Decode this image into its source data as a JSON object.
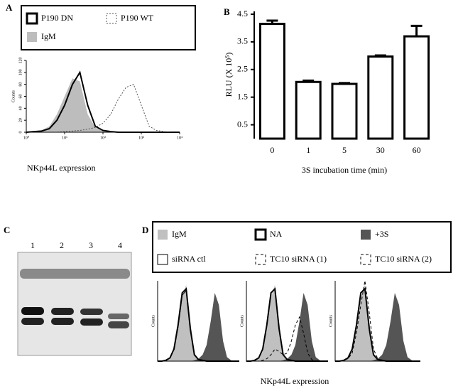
{
  "chart_data": [
    {
      "type": "density",
      "panel_label": "A",
      "xlabel": "NKp44L expression",
      "ylabel": "Counts",
      "xscale": "log",
      "xlim": [
        1,
        10000
      ],
      "ylim": [
        0,
        120
      ],
      "xticks": [
        {
          "value": 1,
          "label": "10⁰"
        },
        {
          "value": 10,
          "label": "10¹"
        },
        {
          "value": 100,
          "label": "10²"
        },
        {
          "value": 1000,
          "label": "10³"
        },
        {
          "value": 10000,
          "label": "10⁴"
        }
      ],
      "yticks": [
        0,
        20,
        40,
        60,
        80,
        100,
        120
      ],
      "x": [
        1,
        1.6,
        2.5,
        4,
        6.3,
        10,
        16,
        25,
        40,
        63,
        100,
        160,
        250,
        400,
        630,
        1000,
        1600,
        2500,
        4000,
        6300,
        10000
      ],
      "series": [
        {
          "name": "P190 DN",
          "color": "#000000",
          "style": "thick",
          "values": [
            0,
            1,
            2,
            6,
            20,
            45,
            80,
            100,
            45,
            10,
            3,
            1,
            0,
            0,
            0,
            0,
            0,
            0,
            0,
            0,
            0
          ]
        },
        {
          "name": "P190 WT",
          "color": "#555555",
          "style": "dotted",
          "values": [
            0,
            0,
            0,
            0,
            0,
            1,
            2,
            3,
            5,
            8,
            15,
            30,
            55,
            75,
            80,
            45,
            10,
            3,
            1,
            0,
            0
          ]
        },
        {
          "name": "IgM",
          "color": "#bdbdbd",
          "style": "fill",
          "values": [
            0,
            1,
            3,
            10,
            30,
            60,
            90,
            85,
            30,
            8,
            2,
            1,
            0,
            0,
            0,
            0,
            0,
            0,
            0,
            0,
            0
          ]
        }
      ]
    },
    {
      "type": "bar",
      "panel_label": "B",
      "xlabel": "3S incubation time (min)",
      "ylabel": "RLU (X 10⁵)",
      "categories": [
        "0",
        "1",
        "5",
        "30",
        "60"
      ],
      "values": [
        4.15,
        2.05,
        1.98,
        2.97,
        3.7
      ],
      "errors": [
        0.12,
        0.05,
        0.03,
        0.04,
        0.38
      ],
      "color": "#ffffff",
      "ylim": [
        0,
        4.5
      ],
      "yticks": [
        0.5,
        1.5,
        2.5,
        3.5,
        4.5
      ]
    },
    {
      "type": "density",
      "panel_label": "D",
      "ylabel": "Counts",
      "xscale": "log",
      "xlim": [
        1,
        10000
      ],
      "ylim": [
        0,
        100
      ],
      "x": [
        1,
        1.6,
        2.5,
        4,
        6.3,
        10,
        16,
        25,
        40,
        63,
        100,
        160,
        250,
        400,
        630,
        1000,
        1600,
        2500,
        4000,
        6300,
        10000
      ],
      "series": [
        {
          "name": "IgM",
          "color": "#c0c0c0",
          "style": "fill",
          "values": [
            0,
            0,
            1,
            3,
            12,
            40,
            80,
            95,
            50,
            10,
            2,
            0,
            0,
            0,
            0,
            0,
            0,
            0,
            0,
            0,
            0
          ]
        },
        {
          "name": "NA",
          "color": "#000000",
          "style": "thick",
          "values": [
            0,
            0,
            1,
            4,
            15,
            45,
            85,
            90,
            40,
            8,
            2,
            1,
            0,
            0,
            0,
            0,
            0,
            0,
            0,
            0,
            0
          ]
        },
        {
          "name": "+3S",
          "color": "#555555",
          "style": "fill",
          "values": [
            0,
            0,
            0,
            0,
            0,
            0,
            0,
            0,
            0,
            1,
            3,
            8,
            20,
            50,
            85,
            70,
            25,
            5,
            1,
            0,
            0
          ]
        },
        {
          "name": "siRNA ctl",
          "color": "#000000",
          "style": "thin",
          "values": [
            0,
            0,
            1,
            4,
            14,
            42,
            82,
            88,
            38,
            8,
            2,
            1,
            0,
            0,
            0,
            0,
            0,
            0,
            0,
            0,
            0
          ]
        }
      ]
    },
    {
      "type": "density",
      "xlabel": "NKp44L expression",
      "ylabel": "Counts",
      "xscale": "log",
      "xlim": [
        1,
        10000
      ],
      "ylim": [
        0,
        100
      ],
      "x": [
        1,
        1.6,
        2.5,
        4,
        6.3,
        10,
        16,
        25,
        40,
        63,
        100,
        160,
        250,
        400,
        630,
        1000,
        1600,
        2500,
        4000,
        6300,
        10000
      ],
      "series": [
        {
          "name": "IgM",
          "color": "#c0c0c0",
          "style": "fill",
          "values": [
            0,
            0,
            1,
            3,
            12,
            40,
            80,
            95,
            50,
            10,
            2,
            0,
            0,
            0,
            0,
            0,
            0,
            0,
            0,
            0,
            0
          ]
        },
        {
          "name": "NA",
          "color": "#000000",
          "style": "thick",
          "values": [
            0,
            0,
            1,
            4,
            15,
            45,
            85,
            90,
            40,
            8,
            2,
            1,
            0,
            0,
            0,
            0,
            0,
            0,
            0,
            0,
            0
          ]
        },
        {
          "name": "+3S",
          "color": "#555555",
          "style": "fill",
          "values": [
            0,
            0,
            0,
            0,
            0,
            0,
            0,
            0,
            0,
            1,
            3,
            8,
            20,
            50,
            85,
            70,
            25,
            5,
            1,
            0,
            0
          ]
        },
        {
          "name": "TC10 siRNA (1)",
          "color": "#000000",
          "style": "dashed",
          "values": [
            0,
            0,
            0,
            0,
            1,
            3,
            8,
            15,
            12,
            8,
            10,
            25,
            45,
            55,
            35,
            10,
            2,
            0,
            0,
            0,
            0
          ]
        }
      ]
    },
    {
      "type": "density",
      "ylabel": "Counts",
      "xscale": "log",
      "xlim": [
        1,
        10000
      ],
      "ylim": [
        0,
        100
      ],
      "x": [
        1,
        1.6,
        2.5,
        4,
        6.3,
        10,
        16,
        25,
        40,
        63,
        100,
        160,
        250,
        400,
        630,
        1000,
        1600,
        2500,
        4000,
        6300,
        10000
      ],
      "series": [
        {
          "name": "IgM",
          "color": "#c0c0c0",
          "style": "fill",
          "values": [
            0,
            0,
            1,
            3,
            12,
            40,
            80,
            95,
            50,
            10,
            2,
            0,
            0,
            0,
            0,
            0,
            0,
            0,
            0,
            0,
            0
          ]
        },
        {
          "name": "NA",
          "color": "#000000",
          "style": "thick",
          "values": [
            0,
            0,
            1,
            4,
            15,
            45,
            85,
            90,
            40,
            8,
            2,
            1,
            0,
            0,
            0,
            0,
            0,
            0,
            0,
            0,
            0
          ]
        },
        {
          "name": "+3S",
          "color": "#555555",
          "style": "fill",
          "values": [
            0,
            0,
            0,
            0,
            0,
            0,
            0,
            0,
            0,
            1,
            3,
            8,
            20,
            50,
            85,
            70,
            25,
            5,
            1,
            0,
            0
          ]
        },
        {
          "name": "TC10 siRNA (2)",
          "color": "#000000",
          "style": "dashed",
          "values": [
            0,
            0,
            1,
            3,
            10,
            35,
            70,
            100,
            60,
            15,
            3,
            1,
            0,
            0,
            0,
            0,
            0,
            0,
            0,
            0,
            0
          ]
        }
      ]
    }
  ],
  "blot": {
    "panel_label": "C",
    "lanes": [
      "1",
      "2",
      "3",
      "4"
    ]
  }
}
